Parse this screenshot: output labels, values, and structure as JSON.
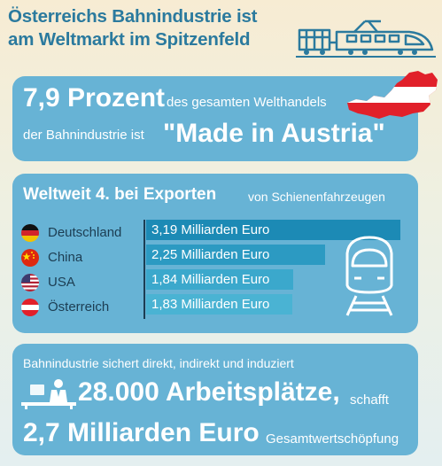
{
  "title": {
    "line1": "Österreichs Bahnindustrie ist",
    "line2": "am Weltmarkt im Spitzenfeld"
  },
  "icons": {
    "train": "train-icon",
    "austria_map": "austria-map-flag-icon",
    "train_front": "train-front-icon",
    "worker": "office-worker-icon"
  },
  "card1": {
    "percent": "7,9 Prozent",
    "text1": "des gesamten Welthandels",
    "text2": "der Bahnindustrie ist",
    "quote": "\"Made in Austria\""
  },
  "card2": {
    "heading": "Weltweit 4. bei Exporten",
    "subheading": "von Schienenfahrzeugen"
  },
  "chart_data": {
    "type": "bar",
    "orientation": "horizontal",
    "categories": [
      "Deutschland",
      "China",
      "USA",
      "Österreich"
    ],
    "values": [
      3.19,
      2.25,
      1.84,
      1.83
    ],
    "value_labels": [
      "3,19 Milliarden Euro",
      "2,25 Milliarden Euro",
      "1,84 Milliarden Euro",
      "1,83 Milliarden Euro"
    ],
    "title": "",
    "xlabel": "",
    "ylabel": "",
    "colors": [
      "#1c8ab5",
      "#2c9ac2",
      "#3ba8cc",
      "#4ab3d3"
    ]
  },
  "card3": {
    "line1": "Bahnindustrie sichert direkt, indirekt und induziert",
    "jobs": "28.000 Arbeitsplätze,",
    "jobs_suffix": "schafft",
    "value": "2,7 Milliarden Euro",
    "value_suffix": "Gesamtwertschöpfung"
  },
  "colors": {
    "title": "#2b7a9e",
    "card": "#67b3d5",
    "text_dark": "#1c3d52"
  }
}
